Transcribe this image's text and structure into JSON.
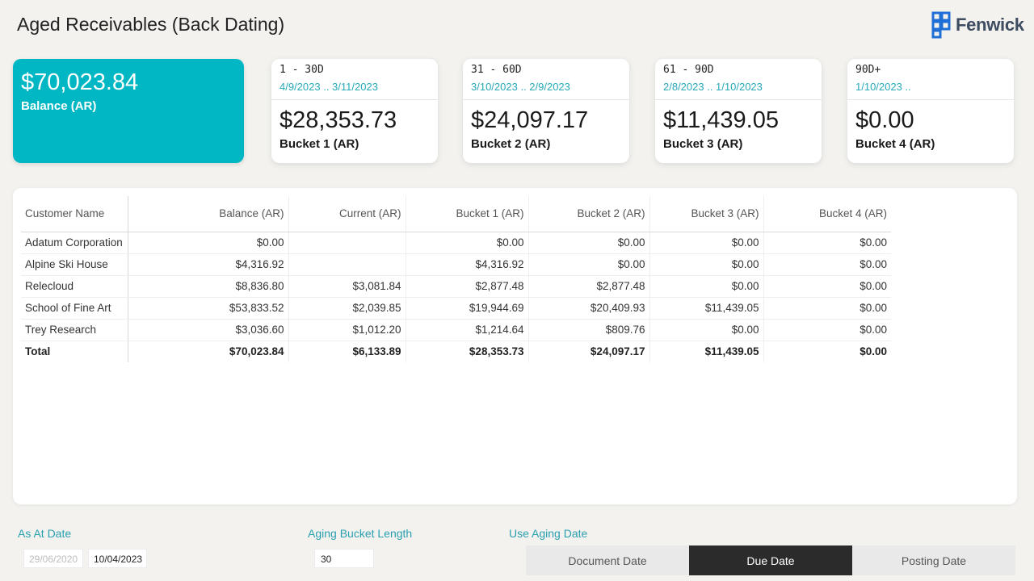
{
  "header": {
    "title": "Aged Receivables (Back Dating)",
    "brand": "Fenwick",
    "brand_color": "#1f6fd6"
  },
  "balance_card": {
    "value": "$70,023.84",
    "label": "Balance (AR)",
    "color": "#00b7c3"
  },
  "buckets": [
    {
      "range": "1 - 30D",
      "dates": "4/9/2023 .. 3/11/2023",
      "amount": "$28,353.73",
      "label": "Bucket 1 (AR)"
    },
    {
      "range": "31 - 60D",
      "dates": "3/10/2023 .. 2/9/2023",
      "amount": "$24,097.17",
      "label": "Bucket 2 (AR)"
    },
    {
      "range": "61 - 90D",
      "dates": "2/8/2023 .. 1/10/2023",
      "amount": "$11,439.05",
      "label": "Bucket 3 (AR)"
    },
    {
      "range": "90D+",
      "dates": "1/10/2023 ..",
      "amount": "$0.00",
      "label": "Bucket 4 (AR)"
    }
  ],
  "table": {
    "columns": [
      "Customer Name",
      "Balance (AR)",
      "Current (AR)",
      "Bucket 1 (AR)",
      "Bucket 2 (AR)",
      "Bucket 3 (AR)",
      "Bucket 4 (AR)"
    ],
    "rows": [
      [
        "Adatum Corporation",
        "$0.00",
        "",
        "$0.00",
        "$0.00",
        "$0.00",
        "$0.00"
      ],
      [
        "Alpine Ski House",
        "$4,316.92",
        "",
        "$4,316.92",
        "$0.00",
        "$0.00",
        "$0.00"
      ],
      [
        "Relecloud",
        "$8,836.80",
        "$3,081.84",
        "$2,877.48",
        "$2,877.48",
        "$0.00",
        "$0.00"
      ],
      [
        "School of Fine Art",
        "$53,833.52",
        "$2,039.85",
        "$19,944.69",
        "$20,409.93",
        "$11,439.05",
        "$0.00"
      ],
      [
        "Trey Research",
        "$3,036.60",
        "$1,012.20",
        "$1,214.64",
        "$809.76",
        "$0.00",
        "$0.00"
      ]
    ],
    "total": [
      "Total",
      "$70,023.84",
      "$6,133.89",
      "$28,353.73",
      "$24,097.17",
      "$11,439.05",
      "$0.00"
    ]
  },
  "filters": {
    "as_at_date": {
      "title": "As At Date",
      "from": "29/06/2020",
      "to": "10/04/2023"
    },
    "aging_bucket_length": {
      "title": "Aging Bucket Length",
      "value": "30"
    },
    "use_aging_date": {
      "title": "Use Aging Date",
      "options": [
        "Document Date",
        "Due Date",
        "Posting Date"
      ],
      "selected": "Due Date"
    }
  }
}
